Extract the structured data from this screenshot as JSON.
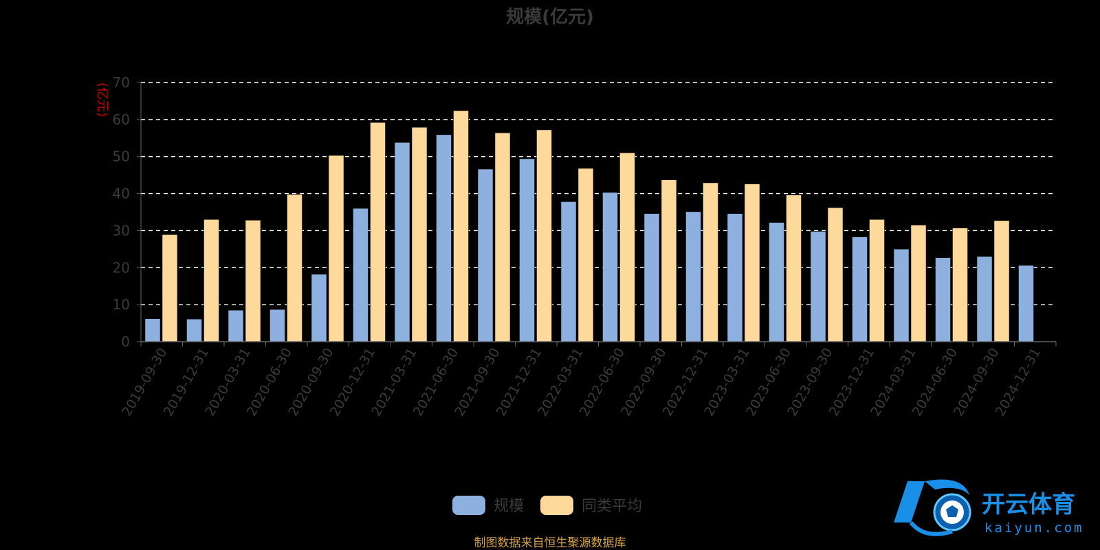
{
  "chart_data": {
    "type": "bar",
    "title": "规模(亿元)",
    "ylabel": "(亿元)",
    "ylim": [
      0,
      70
    ],
    "yticks": [
      0,
      10,
      20,
      30,
      40,
      50,
      60,
      70
    ],
    "grid": true,
    "legend_position": "bottom-center",
    "categories": [
      "2019-09-30",
      "2019-12-31",
      "2020-03-31",
      "2020-06-30",
      "2020-09-30",
      "2020-12-31",
      "2021-03-31",
      "2021-06-30",
      "2021-09-30",
      "2021-12-31",
      "2022-03-31",
      "2022-06-30",
      "2022-09-30",
      "2022-12-31",
      "2023-03-31",
      "2023-06-30",
      "2023-09-30",
      "2023-12-31",
      "2024-03-31",
      "2024-06-30",
      "2024-09-30",
      "2024-12-31"
    ],
    "series": [
      {
        "name": "规模",
        "color": "#8eb0df",
        "values": [
          6.2,
          6.1,
          8.5,
          8.7,
          18.2,
          36.0,
          53.8,
          55.9,
          46.6,
          49.4,
          37.8,
          40.3,
          34.6,
          35.1,
          34.6,
          32.2,
          29.8,
          28.3,
          25.0,
          22.7,
          23.0,
          20.6
        ]
      },
      {
        "name": "同类平均",
        "color": "#fdd99b",
        "values": [
          28.9,
          33.0,
          32.8,
          39.8,
          50.3,
          59.2,
          57.9,
          62.4,
          56.4,
          57.2,
          46.8,
          51.0,
          43.7,
          42.9,
          42.6,
          39.6,
          36.2,
          33.0,
          31.5,
          30.7,
          32.7,
          null
        ]
      }
    ]
  },
  "footer": {
    "source": "制图数据来自恒生聚源数据库"
  },
  "watermark": {
    "brand": "开云体育",
    "domain": "kaiyun.com"
  },
  "colors": {
    "background": "#000000",
    "grid": "#ffffff",
    "axis": "#666666",
    "text": "#3a3a3a",
    "unit": "#cc0000",
    "source": "#d4a24a",
    "logo": "#1a8fe8"
  }
}
